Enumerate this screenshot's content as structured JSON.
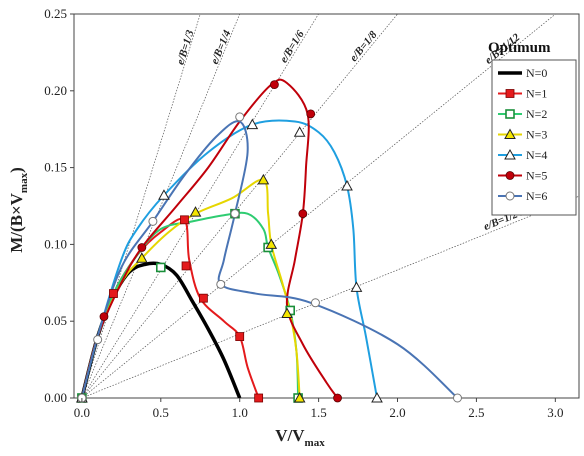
{
  "chart_data": {
    "type": "line",
    "title": "",
    "xlabel": "V/V",
    "xlabel_sub": "max",
    "ylabel": "M/(B×V",
    "ylabel_sub": "max",
    "ylabel_close": ")",
    "xlim": [
      -0.05,
      3.15
    ],
    "ylim": [
      0,
      0.25
    ],
    "x_ticks": [
      "0.0",
      "0.5",
      "1.0",
      "1.5",
      "2.0",
      "2.5",
      "3.0"
    ],
    "y_ticks": [
      "0.00",
      "0.05",
      "0.10",
      "0.15",
      "0.20",
      "0.25"
    ],
    "grid": false,
    "legend_position": "top-right",
    "annotation": "Optimum",
    "reference_lines": [
      {
        "label": "e/B=1/3",
        "slope": 0.3333
      },
      {
        "label": "e/B=1/4",
        "slope": 0.25
      },
      {
        "label": "e/B=1/6",
        "slope": 0.1667
      },
      {
        "label": "e/B=1/8",
        "slope": 0.125
      },
      {
        "label": "e/B=1/12",
        "slope": 0.0833
      },
      {
        "label": "e/B=1/24",
        "slope": 0.0417
      }
    ],
    "series": [
      {
        "name": "N=0",
        "color": "#000000",
        "marker": "none",
        "curve": [
          [
            0,
            0
          ],
          [
            0.1,
            0.04
          ],
          [
            0.2,
            0.066
          ],
          [
            0.3,
            0.082
          ],
          [
            0.4,
            0.087
          ],
          [
            0.5,
            0.087
          ],
          [
            0.6,
            0.08
          ],
          [
            0.7,
            0.063
          ],
          [
            0.8,
            0.045
          ],
          [
            0.9,
            0.025
          ],
          [
            1.0,
            0
          ]
        ],
        "markers": []
      },
      {
        "name": "N=1",
        "color": "#e41a1c",
        "marker": "square",
        "curve": [
          [
            0,
            0
          ],
          [
            0.1,
            0.04
          ],
          [
            0.2,
            0.068
          ],
          [
            0.35,
            0.093
          ],
          [
            0.5,
            0.108
          ],
          [
            0.65,
            0.116
          ],
          [
            0.68,
            0.09
          ],
          [
            0.75,
            0.065
          ],
          [
            0.9,
            0.05
          ],
          [
            1.0,
            0.04
          ],
          [
            1.05,
            0.02
          ],
          [
            1.12,
            0
          ]
        ],
        "markers": [
          [
            0,
            0
          ],
          [
            0.2,
            0.068
          ],
          [
            0.65,
            0.116
          ],
          [
            0.66,
            0.086
          ],
          [
            0.77,
            0.065
          ],
          [
            1.0,
            0.04
          ],
          [
            1.12,
            0
          ]
        ]
      },
      {
        "name": "N=2",
        "color": "#2ecc71",
        "marker": "square",
        "curve": [
          [
            0,
            0
          ],
          [
            0.1,
            0.04
          ],
          [
            0.2,
            0.068
          ],
          [
            0.35,
            0.093
          ],
          [
            0.5,
            0.11
          ],
          [
            0.7,
            0.115
          ],
          [
            0.9,
            0.119
          ],
          [
            1.05,
            0.12
          ],
          [
            1.15,
            0.11
          ],
          [
            1.18,
            0.098
          ],
          [
            1.25,
            0.08
          ],
          [
            1.32,
            0.057
          ],
          [
            1.36,
            0.03
          ],
          [
            1.37,
            0
          ]
        ],
        "markers": [
          [
            0,
            0
          ],
          [
            0.5,
            0.085
          ],
          [
            0.97,
            0.12
          ],
          [
            1.18,
            0.098
          ],
          [
            1.32,
            0.057
          ],
          [
            1.37,
            0
          ]
        ]
      },
      {
        "name": "N=3",
        "color": "#e6d600",
        "marker": "triangle",
        "curve": [
          [
            0,
            0
          ],
          [
            0.1,
            0.04
          ],
          [
            0.25,
            0.075
          ],
          [
            0.38,
            0.091
          ],
          [
            0.55,
            0.108
          ],
          [
            0.72,
            0.12
          ],
          [
            0.95,
            0.13
          ],
          [
            1.15,
            0.142
          ],
          [
            1.18,
            0.12
          ],
          [
            1.2,
            0.1
          ],
          [
            1.27,
            0.075
          ],
          [
            1.32,
            0.055
          ],
          [
            1.36,
            0.03
          ],
          [
            1.38,
            0
          ]
        ],
        "markers": [
          [
            0,
            0
          ],
          [
            0.38,
            0.091
          ],
          [
            0.72,
            0.121
          ],
          [
            1.15,
            0.142
          ],
          [
            1.2,
            0.1
          ],
          [
            1.3,
            0.055
          ],
          [
            1.38,
            0
          ]
        ]
      },
      {
        "name": "N=4",
        "color": "#1f9fe0",
        "marker": "triangle",
        "curve": [
          [
            0,
            0
          ],
          [
            0.1,
            0.04
          ],
          [
            0.25,
            0.09
          ],
          [
            0.35,
            0.11
          ],
          [
            0.52,
            0.132
          ],
          [
            0.8,
            0.16
          ],
          [
            1.08,
            0.178
          ],
          [
            1.35,
            0.18
          ],
          [
            1.5,
            0.173
          ],
          [
            1.6,
            0.16
          ],
          [
            1.68,
            0.138
          ],
          [
            1.72,
            0.11
          ],
          [
            1.74,
            0.072
          ],
          [
            1.8,
            0.04
          ],
          [
            1.87,
            0
          ]
        ],
        "markers": [
          [
            0,
            0
          ],
          [
            0.52,
            0.132
          ],
          [
            1.08,
            0.178
          ],
          [
            1.38,
            0.173
          ],
          [
            1.68,
            0.138
          ],
          [
            1.74,
            0.072
          ],
          [
            1.87,
            0
          ]
        ]
      },
      {
        "name": "N=5",
        "color": "#c0000a",
        "marker": "circle",
        "curve": [
          [
            0,
            0
          ],
          [
            0.1,
            0.04
          ],
          [
            0.25,
            0.075
          ],
          [
            0.38,
            0.098
          ],
          [
            0.6,
            0.125
          ],
          [
            0.8,
            0.15
          ],
          [
            1.0,
            0.18
          ],
          [
            1.2,
            0.204
          ],
          [
            1.3,
            0.205
          ],
          [
            1.43,
            0.185
          ],
          [
            1.42,
            0.15
          ],
          [
            1.4,
            0.12
          ],
          [
            1.35,
            0.09
          ],
          [
            1.3,
            0.06
          ],
          [
            1.4,
            0.035
          ],
          [
            1.55,
            0.01
          ],
          [
            1.62,
            0
          ]
        ],
        "markers": [
          [
            0,
            0
          ],
          [
            0.14,
            0.053
          ],
          [
            0.38,
            0.098
          ],
          [
            1.22,
            0.204
          ],
          [
            1.45,
            0.185
          ],
          [
            1.4,
            0.12
          ],
          [
            1.62,
            0
          ]
        ]
      },
      {
        "name": "N=6",
        "color": "#4a74b4",
        "marker": "open-circle",
        "curve": [
          [
            0,
            0
          ],
          [
            0.1,
            0.04
          ],
          [
            0.25,
            0.085
          ],
          [
            0.45,
            0.115
          ],
          [
            0.65,
            0.145
          ],
          [
            0.85,
            0.17
          ],
          [
            1.0,
            0.18
          ],
          [
            1.05,
            0.16
          ],
          [
            0.97,
            0.12
          ],
          [
            0.9,
            0.09
          ],
          [
            0.88,
            0.074
          ],
          [
            1.1,
            0.068
          ],
          [
            1.45,
            0.062
          ],
          [
            2.0,
            0.035
          ],
          [
            2.38,
            0
          ]
        ],
        "markers": [
          [
            0,
            0
          ],
          [
            0.1,
            0.038
          ],
          [
            0.45,
            0.115
          ],
          [
            0.97,
            0.12
          ],
          [
            1.0,
            0.183
          ],
          [
            0.88,
            0.074
          ],
          [
            1.48,
            0.062
          ],
          [
            2.38,
            0
          ]
        ]
      }
    ]
  }
}
